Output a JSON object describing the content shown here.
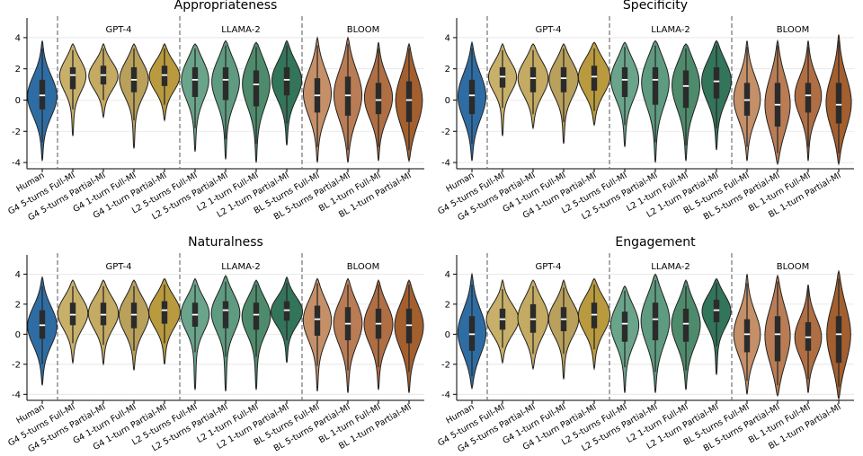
{
  "categories": [
    "Human",
    "G4 5-turns Full-MI",
    "G4 5-turns Partial-MI",
    "G4 1-turn Full-MI",
    "G4 1-turn Partial-MI",
    "L2 5-turns Full-MI",
    "L2 5-turns Partial-MI",
    "L2 1-turn Full-MI",
    "L2 1-turn Partial-MI",
    "BL 5-turns Full-MI",
    "BL 5-turns Partial-MI",
    "BL 1-turn Full-MI",
    "BL 1-turn Partial-MI"
  ],
  "groups": [
    {
      "label": "GPT-4",
      "first": 1,
      "last": 4
    },
    {
      "label": "LLAMA-2",
      "first": 5,
      "last": 8
    },
    {
      "label": "BLOOM",
      "first": 9,
      "last": 12
    }
  ],
  "colors": [
    "#2e6da4",
    "#c8b06a",
    "#c4aa62",
    "#b9a05b",
    "#b99a3e",
    "#6aa58b",
    "#5f9b80",
    "#4e8b6c",
    "#33755a",
    "#c58f68",
    "#b97c54",
    "#b06e43",
    "#a45f2e"
  ],
  "yticks": [
    -4,
    -2,
    0,
    2,
    4
  ],
  "chart_data": [
    {
      "type": "violin",
      "title": "Appropriateness",
      "ylim": [
        -4.4,
        4.8
      ],
      "grid": true,
      "series": [
        {
          "min": -3.9,
          "max": 3.8,
          "q1": -0.6,
          "median": 0.3,
          "q3": 1.3,
          "wlo": -2.7,
          "whi": 3.3,
          "peak": 0.3,
          "bw": 0.42
        },
        {
          "min": -2.3,
          "max": 3.6,
          "q1": 0.7,
          "median": 1.6,
          "q3": 2.1,
          "wlo": -0.6,
          "whi": 3.2,
          "peak": 1.7,
          "bw": 0.4
        },
        {
          "min": -1.1,
          "max": 3.6,
          "q1": 1.0,
          "median": 1.6,
          "q3": 2.2,
          "wlo": 0.0,
          "whi": 3.3,
          "peak": 1.6,
          "bw": 0.42
        },
        {
          "min": -3.1,
          "max": 3.6,
          "q1": 0.5,
          "median": 1.3,
          "q3": 2.1,
          "wlo": -1.3,
          "whi": 3.3,
          "peak": 1.5,
          "bw": 0.44
        },
        {
          "min": -1.3,
          "max": 3.6,
          "q1": 0.9,
          "median": 1.6,
          "q3": 2.2,
          "wlo": -0.3,
          "whi": 3.3,
          "peak": 1.6,
          "bw": 0.44
        },
        {
          "min": -3.3,
          "max": 3.6,
          "q1": 0.2,
          "median": 1.3,
          "q3": 2.1,
          "wlo": -1.8,
          "whi": 3.3,
          "peak": 1.5,
          "bw": 0.42
        },
        {
          "min": -3.8,
          "max": 3.8,
          "q1": 0.0,
          "median": 1.3,
          "q3": 2.1,
          "wlo": -2.5,
          "whi": 3.5,
          "peak": 1.4,
          "bw": 0.42
        },
        {
          "min": -4.0,
          "max": 3.7,
          "q1": -0.4,
          "median": 1.0,
          "q3": 1.9,
          "wlo": -2.8,
          "whi": 3.4,
          "peak": 1.3,
          "bw": 0.42
        },
        {
          "min": -2.9,
          "max": 3.8,
          "q1": 0.3,
          "median": 1.3,
          "q3": 2.1,
          "wlo": -1.5,
          "whi": 3.5,
          "peak": 1.4,
          "bw": 0.44
        },
        {
          "min": -4.0,
          "max": 4.0,
          "q1": -0.8,
          "median": 0.3,
          "q3": 1.4,
          "wlo": -3.0,
          "whi": 3.5,
          "peak": 0.5,
          "bw": 0.4
        },
        {
          "min": -4.0,
          "max": 4.0,
          "q1": -1.0,
          "median": 0.3,
          "q3": 1.5,
          "wlo": -3.2,
          "whi": 3.6,
          "peak": 0.4,
          "bw": 0.4
        },
        {
          "min": -3.9,
          "max": 3.7,
          "q1": -0.9,
          "median": 0.0,
          "q3": 1.1,
          "wlo": -3.0,
          "whi": 3.3,
          "peak": 0.2,
          "bw": 0.4
        },
        {
          "min": -3.9,
          "max": 3.6,
          "q1": -1.4,
          "median": 0.0,
          "q3": 1.2,
          "wlo": -3.2,
          "whi": 3.3,
          "peak": 0.0,
          "bw": 0.38
        }
      ]
    },
    {
      "type": "violin",
      "title": "Specificity",
      "ylim": [
        -4.4,
        4.8
      ],
      "grid": true,
      "series": [
        {
          "min": -3.9,
          "max": 3.7,
          "q1": -0.9,
          "median": 0.3,
          "q3": 1.3,
          "wlo": -2.8,
          "whi": 3.3,
          "peak": 0.3,
          "bw": 0.4
        },
        {
          "min": -2.3,
          "max": 3.6,
          "q1": 0.8,
          "median": 1.5,
          "q3": 2.1,
          "wlo": -0.5,
          "whi": 3.2,
          "peak": 1.6,
          "bw": 0.42
        },
        {
          "min": -1.8,
          "max": 3.6,
          "q1": 0.5,
          "median": 1.4,
          "q3": 2.1,
          "wlo": -0.9,
          "whi": 3.2,
          "peak": 1.5,
          "bw": 0.44
        },
        {
          "min": -2.8,
          "max": 3.6,
          "q1": 0.5,
          "median": 1.4,
          "q3": 2.1,
          "wlo": -1.4,
          "whi": 3.3,
          "peak": 1.5,
          "bw": 0.44
        },
        {
          "min": -1.6,
          "max": 3.7,
          "q1": 0.6,
          "median": 1.5,
          "q3": 2.2,
          "wlo": -0.7,
          "whi": 3.3,
          "peak": 1.6,
          "bw": 0.46
        },
        {
          "min": -3.0,
          "max": 3.7,
          "q1": 0.2,
          "median": 1.3,
          "q3": 2.1,
          "wlo": -1.6,
          "whi": 3.4,
          "peak": 1.5,
          "bw": 0.42
        },
        {
          "min": -4.0,
          "max": 3.8,
          "q1": -0.3,
          "median": 1.3,
          "q3": 2.1,
          "wlo": -2.7,
          "whi": 3.5,
          "peak": 1.4,
          "bw": 0.42
        },
        {
          "min": -3.9,
          "max": 3.6,
          "q1": -0.5,
          "median": 0.9,
          "q3": 1.9,
          "wlo": -2.9,
          "whi": 3.3,
          "peak": 1.2,
          "bw": 0.42
        },
        {
          "min": -3.2,
          "max": 3.8,
          "q1": 0.1,
          "median": 1.2,
          "q3": 2.1,
          "wlo": -1.8,
          "whi": 3.5,
          "peak": 1.4,
          "bw": 0.44
        },
        {
          "min": -3.9,
          "max": 3.8,
          "q1": -1.0,
          "median": 0.0,
          "q3": 1.1,
          "wlo": -3.0,
          "whi": 3.4,
          "peak": 0.1,
          "bw": 0.38
        },
        {
          "min": -4.1,
          "max": 3.8,
          "q1": -1.7,
          "median": -0.3,
          "q3": 1.1,
          "wlo": -3.4,
          "whi": 3.5,
          "peak": -0.3,
          "bw": 0.36
        },
        {
          "min": -3.9,
          "max": 3.8,
          "q1": -0.8,
          "median": 0.3,
          "q3": 1.1,
          "wlo": -3.0,
          "whi": 3.4,
          "peak": 0.3,
          "bw": 0.38
        },
        {
          "min": -4.1,
          "max": 4.2,
          "q1": -1.5,
          "median": -0.3,
          "q3": 1.1,
          "wlo": -3.4,
          "whi": 3.8,
          "peak": -0.2,
          "bw": 0.36
        }
      ]
    },
    {
      "type": "violin",
      "title": "Naturalness",
      "ylim": [
        -4.4,
        4.8
      ],
      "grid": true,
      "series": [
        {
          "min": -3.4,
          "max": 3.8,
          "q1": -0.3,
          "median": 0.6,
          "q3": 1.6,
          "wlo": -2.0,
          "whi": 3.2,
          "peak": 0.6,
          "bw": 0.42
        },
        {
          "min": -1.9,
          "max": 3.6,
          "q1": 0.6,
          "median": 1.3,
          "q3": 2.1,
          "wlo": -0.6,
          "whi": 3.2,
          "peak": 1.5,
          "bw": 0.44
        },
        {
          "min": -2.0,
          "max": 3.6,
          "q1": 0.6,
          "median": 1.3,
          "q3": 2.1,
          "wlo": -0.7,
          "whi": 3.2,
          "peak": 1.5,
          "bw": 0.44
        },
        {
          "min": -2.4,
          "max": 3.6,
          "q1": 0.4,
          "median": 1.3,
          "q3": 2.1,
          "wlo": -1.1,
          "whi": 3.2,
          "peak": 1.4,
          "bw": 0.44
        },
        {
          "min": -2.0,
          "max": 3.7,
          "q1": 0.7,
          "median": 1.6,
          "q3": 2.2,
          "wlo": -0.6,
          "whi": 3.3,
          "peak": 1.6,
          "bw": 0.46
        },
        {
          "min": -3.7,
          "max": 3.7,
          "q1": 0.5,
          "median": 1.3,
          "q3": 2.1,
          "wlo": -1.2,
          "whi": 3.3,
          "peak": 1.5,
          "bw": 0.44
        },
        {
          "min": -3.8,
          "max": 3.9,
          "q1": 0.4,
          "median": 1.6,
          "q3": 2.2,
          "wlo": -1.5,
          "whi": 3.5,
          "peak": 1.6,
          "bw": 0.44
        },
        {
          "min": -3.7,
          "max": 3.6,
          "q1": 0.3,
          "median": 1.3,
          "q3": 2.1,
          "wlo": -1.5,
          "whi": 3.3,
          "peak": 1.4,
          "bw": 0.44
        },
        {
          "min": -1.9,
          "max": 3.8,
          "q1": 0.9,
          "median": 1.6,
          "q3": 2.2,
          "wlo": -0.4,
          "whi": 3.4,
          "peak": 1.6,
          "bw": 0.46
        },
        {
          "min": -3.8,
          "max": 3.7,
          "q1": -0.1,
          "median": 1.0,
          "q3": 1.9,
          "wlo": -2.1,
          "whi": 3.4,
          "peak": 1.1,
          "bw": 0.42
        },
        {
          "min": -3.9,
          "max": 3.7,
          "q1": -0.4,
          "median": 0.7,
          "q3": 1.8,
          "wlo": -2.4,
          "whi": 3.3,
          "peak": 0.9,
          "bw": 0.42
        },
        {
          "min": -3.7,
          "max": 3.6,
          "q1": -0.3,
          "median": 0.7,
          "q3": 1.7,
          "wlo": -2.2,
          "whi": 3.3,
          "peak": 0.8,
          "bw": 0.42
        },
        {
          "min": -3.9,
          "max": 3.6,
          "q1": -0.6,
          "median": 0.6,
          "q3": 1.7,
          "wlo": -2.5,
          "whi": 3.3,
          "peak": 0.7,
          "bw": 0.42
        }
      ]
    },
    {
      "type": "violin",
      "title": "Engagement",
      "ylim": [
        -4.4,
        4.8
      ],
      "grid": true,
      "series": [
        {
          "min": -3.6,
          "max": 4.0,
          "q1": -1.1,
          "median": 0.0,
          "q3": 1.2,
          "wlo": -2.8,
          "whi": 3.3,
          "peak": 0.1,
          "bw": 0.4
        },
        {
          "min": -1.9,
          "max": 3.6,
          "q1": 0.3,
          "median": 1.0,
          "q3": 1.7,
          "wlo": -0.9,
          "whi": 3.0,
          "peak": 1.0,
          "bw": 0.46
        },
        {
          "min": -2.3,
          "max": 3.6,
          "q1": 0.1,
          "median": 1.0,
          "q3": 2.0,
          "wlo": -1.3,
          "whi": 3.2,
          "peak": 1.2,
          "bw": 0.44
        },
        {
          "min": -3.0,
          "max": 3.6,
          "q1": 0.2,
          "median": 1.0,
          "q3": 1.8,
          "wlo": -1.3,
          "whi": 3.1,
          "peak": 1.1,
          "bw": 0.44
        },
        {
          "min": -2.3,
          "max": 3.7,
          "q1": 0.4,
          "median": 1.3,
          "q3": 2.1,
          "wlo": -1.0,
          "whi": 3.3,
          "peak": 1.4,
          "bw": 0.46
        },
        {
          "min": -3.9,
          "max": 3.2,
          "q1": -0.5,
          "median": 0.7,
          "q3": 1.5,
          "wlo": -2.2,
          "whi": 2.9,
          "peak": 0.8,
          "bw": 0.42
        },
        {
          "min": -3.9,
          "max": 4.0,
          "q1": -0.4,
          "median": 1.0,
          "q3": 2.1,
          "wlo": -2.5,
          "whi": 3.6,
          "peak": 1.1,
          "bw": 0.42
        },
        {
          "min": -3.7,
          "max": 3.6,
          "q1": -0.5,
          "median": 0.7,
          "q3": 1.7,
          "wlo": -2.4,
          "whi": 3.2,
          "peak": 0.8,
          "bw": 0.42
        },
        {
          "min": -2.7,
          "max": 3.7,
          "q1": 0.8,
          "median": 1.6,
          "q3": 2.3,
          "wlo": -0.8,
          "whi": 3.4,
          "peak": 1.7,
          "bw": 0.44
        },
        {
          "min": -4.0,
          "max": 4.0,
          "q1": -1.2,
          "median": 0.0,
          "q3": 1.0,
          "wlo": -3.1,
          "whi": 3.4,
          "peak": 0.0,
          "bw": 0.38
        },
        {
          "min": -4.1,
          "max": 3.9,
          "q1": -1.8,
          "median": 0.0,
          "q3": 1.2,
          "wlo": -3.4,
          "whi": 3.5,
          "peak": -0.1,
          "bw": 0.36
        },
        {
          "min": -3.9,
          "max": 3.3,
          "q1": -1.1,
          "median": -0.2,
          "q3": 0.8,
          "wlo": -3.0,
          "whi": 3.1,
          "peak": -0.2,
          "bw": 0.38
        },
        {
          "min": -4.3,
          "max": 4.2,
          "q1": -1.9,
          "median": 0.0,
          "q3": 1.2,
          "wlo": -3.5,
          "whi": 3.7,
          "peak": 0.0,
          "bw": 0.34
        }
      ]
    }
  ]
}
